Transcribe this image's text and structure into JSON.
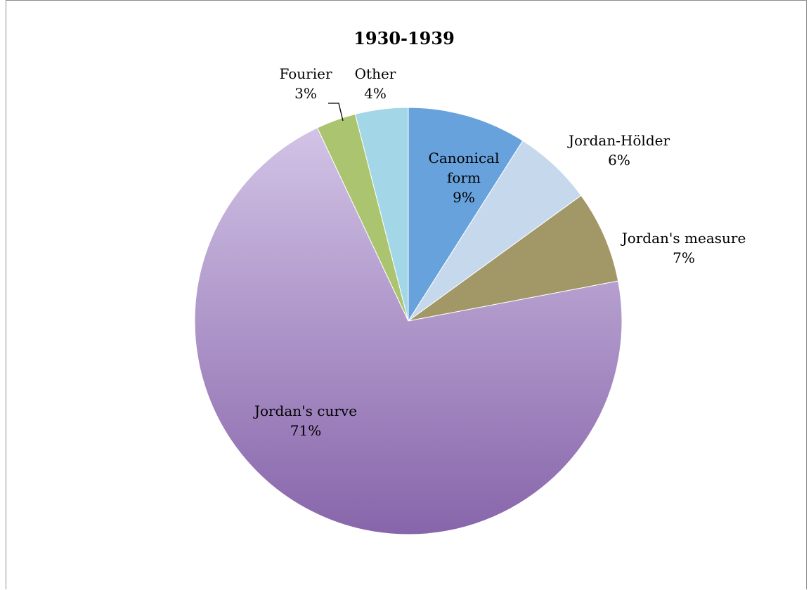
{
  "chart_data": {
    "type": "pie",
    "title": "1930-1939",
    "slices": [
      {
        "name": "Canonical form",
        "label_lines": [
          "Canonical",
          "form"
        ],
        "value": 9,
        "value_label": "9%",
        "color": "#67a2dc"
      },
      {
        "name": "Jordan-Hölder",
        "label_lines": [
          "Jordan-Hölder"
        ],
        "value": 6,
        "value_label": "6%",
        "color": "#c6d8ec"
      },
      {
        "name": "Jordan's measure",
        "label_lines": [
          "Jordan's measure"
        ],
        "value": 7,
        "value_label": "7%",
        "color": "#a29767"
      },
      {
        "name": "Jordan's curve",
        "label_lines": [
          "Jordan's curve"
        ],
        "value": 71,
        "value_label": "71%",
        "color_top": "#d2c3e6",
        "color_bottom": "#8765aa"
      },
      {
        "name": "Fourier",
        "label_lines": [
          "Fourier"
        ],
        "value": 3,
        "value_label": "3%",
        "color": "#aac46f"
      },
      {
        "name": "Other",
        "label_lines": [
          "Other"
        ],
        "value": 4,
        "value_label": "4%",
        "color": "#a3d6e6"
      }
    ],
    "start_angle_deg": 0,
    "direction": "clockwise",
    "legend": "none",
    "data_labels": "name-and-percent"
  }
}
